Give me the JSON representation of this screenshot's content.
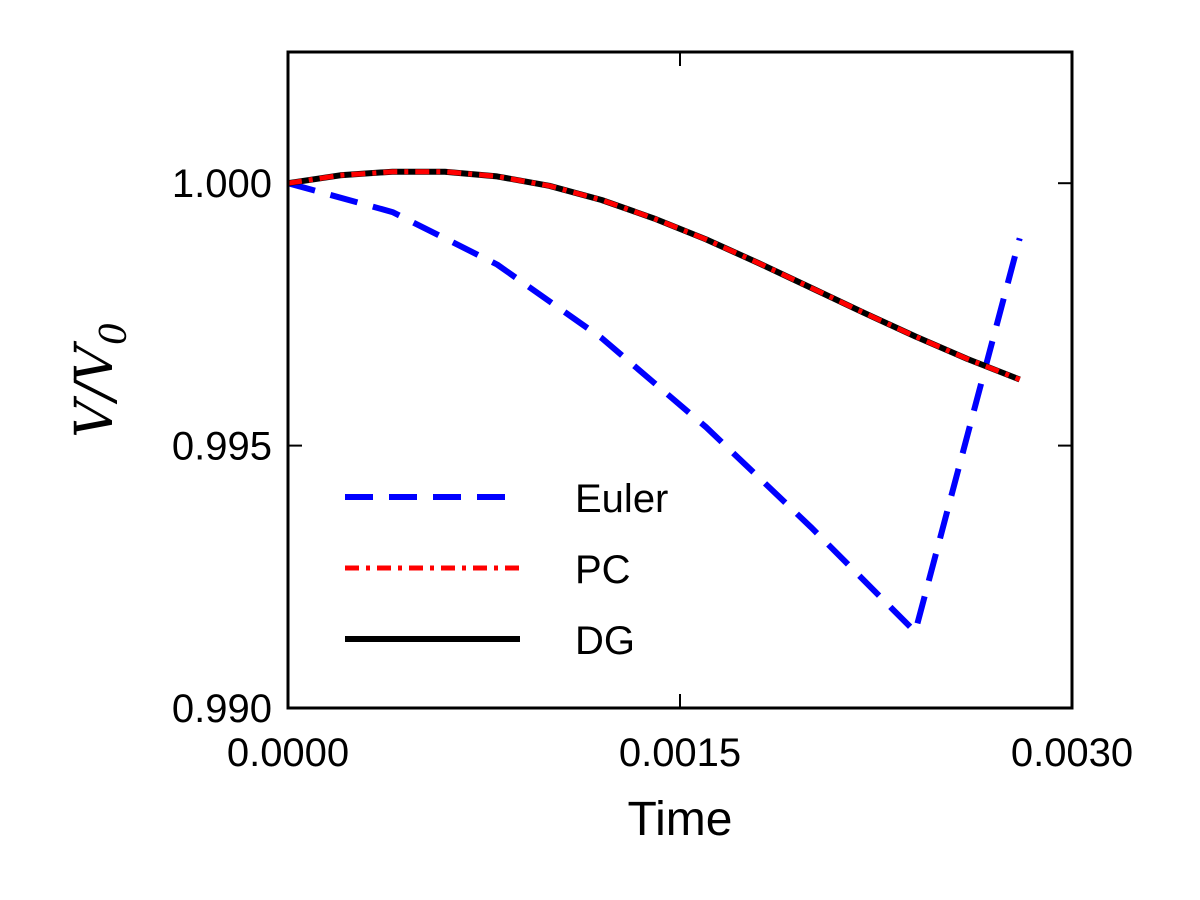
{
  "chart_data": {
    "type": "line",
    "xlabel": "Time",
    "ylabel": "V/V",
    "ylabel_subscript": "0",
    "xlim": [
      0.0,
      0.003
    ],
    "ylim": [
      0.99,
      1.0025
    ],
    "xticks": [
      0.0,
      0.0015,
      0.003
    ],
    "xtick_labels": [
      "0.0000",
      "0.0015",
      "0.0030"
    ],
    "yticks": [
      0.99,
      0.995,
      1.0
    ],
    "ytick_labels": [
      "0.990",
      "0.995",
      "1.000"
    ],
    "grid": false,
    "legend_position": "lower-left",
    "series": [
      {
        "name": "Euler",
        "style": "dashed",
        "color": "#0000ff",
        "x": [
          0.0,
          0.0004,
          0.0008,
          0.0012,
          0.0016,
          0.002,
          0.0024,
          0.0028
        ],
        "y": [
          1.0,
          0.99945,
          0.99845,
          0.99705,
          0.99535,
          0.99345,
          0.99145,
          0.99895
        ]
      },
      {
        "name": "PC",
        "style": "dashdot",
        "color": "#ff0000",
        "x": [
          0.0,
          0.0002,
          0.0004,
          0.0006,
          0.0008,
          0.001,
          0.0012,
          0.0014,
          0.0016,
          0.0018,
          0.002,
          0.0022,
          0.0024,
          0.0026,
          0.0028
        ],
        "y": [
          1.0,
          1.00015,
          1.00022,
          1.00022,
          1.00013,
          0.99995,
          0.99968,
          0.99933,
          0.99893,
          0.99848,
          0.99801,
          0.99754,
          0.99708,
          0.99665,
          0.99626
        ]
      },
      {
        "name": "DG",
        "style": "solid",
        "color": "#000000",
        "x": [
          0.0,
          0.0002,
          0.0004,
          0.0006,
          0.0008,
          0.001,
          0.0012,
          0.0014,
          0.0016,
          0.0018,
          0.002,
          0.0022,
          0.0024,
          0.0026,
          0.0028
        ],
        "y": [
          1.0,
          1.00015,
          1.00022,
          1.00022,
          1.00013,
          0.99995,
          0.99968,
          0.99933,
          0.99893,
          0.99848,
          0.99801,
          0.99754,
          0.99708,
          0.99665,
          0.99626
        ]
      }
    ]
  }
}
